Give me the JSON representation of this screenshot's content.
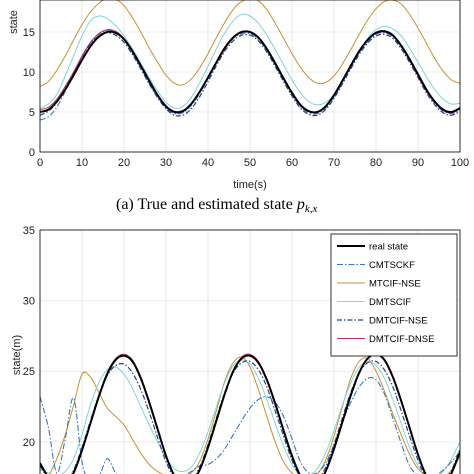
{
  "colors": {
    "real state": "#000000",
    "CMTSCKF": "#3a78c2",
    "MTCIF-NSE": "#c8912e",
    "DMTSCIF": "#7fd6d6",
    "DMTCIF-NSE": "#27408b",
    "DMTCIF-DNSE": "#b0306a"
  },
  "caption_a": "(a)  True and estimated state p_k,x",
  "chart_data": [
    {
      "type": "line",
      "xlabel": "time(s)",
      "ylabel": "state",
      "xlim": [
        0,
        100
      ],
      "ylim": [
        0,
        19
      ],
      "xticks": [
        "0",
        "10",
        "20",
        "30",
        "40",
        "50",
        "60",
        "70",
        "80",
        "90",
        "100"
      ],
      "yticks": [
        "0",
        "5",
        "10",
        "15"
      ],
      "grid": true,
      "x": [
        0,
        2,
        4,
        6,
        8,
        10,
        12,
        14,
        16,
        18,
        20,
        22,
        24,
        26,
        28,
        30,
        32,
        34,
        36,
        38,
        40,
        42,
        44,
        46,
        48,
        50,
        52,
        54,
        56,
        58,
        60,
        62,
        64,
        66,
        68,
        70,
        72,
        74,
        76,
        78,
        80,
        82,
        84,
        86,
        88,
        90,
        92,
        94,
        96,
        98,
        100
      ],
      "series": [
        {
          "name": "real state",
          "values": [
            5.0,
            5.3,
            6.3,
            7.8,
            9.6,
            11.5,
            13.2,
            14.4,
            15.0,
            14.9,
            14.1,
            12.6,
            10.8,
            8.9,
            7.1,
            5.7,
            5.0,
            5.1,
            6.0,
            7.5,
            9.3,
            11.2,
            13.0,
            14.3,
            15.0,
            15.0,
            14.3,
            12.9,
            11.1,
            9.2,
            7.4,
            5.9,
            5.1,
            5.0,
            5.7,
            7.1,
            8.9,
            10.8,
            12.6,
            14.0,
            14.9,
            15.1,
            14.6,
            13.3,
            11.6,
            9.7,
            7.8,
            6.3,
            5.3,
            5.0,
            5.5
          ]
        },
        {
          "name": "CMTSCKF",
          "values": [
            4.0,
            4.4,
            5.6,
            7.6,
            9.8,
            11.9,
            13.6,
            14.7,
            15.2,
            15.0,
            14.0,
            12.4,
            10.5,
            8.6,
            6.9,
            5.5,
            4.8,
            4.9,
            5.8,
            7.3,
            9.2,
            11.1,
            12.9,
            14.2,
            14.8,
            14.8,
            14.1,
            12.7,
            10.9,
            9.0,
            7.2,
            5.7,
            4.9,
            4.8,
            5.5,
            6.9,
            8.7,
            10.6,
            12.4,
            13.8,
            14.7,
            14.9,
            14.4,
            13.1,
            11.4,
            9.5,
            7.6,
            6.1,
            5.1,
            4.8,
            5.3
          ]
        },
        {
          "name": "MTCIF-NSE",
          "values": [
            8.2,
            8.8,
            10.2,
            12.0,
            14.0,
            15.9,
            17.5,
            18.6,
            19.2,
            19.1,
            18.3,
            16.8,
            15.0,
            13.0,
            11.2,
            9.6,
            8.6,
            8.4,
            9.1,
            10.5,
            12.3,
            14.3,
            16.2,
            17.8,
            18.8,
            19.2,
            18.9,
            17.8,
            16.1,
            14.2,
            12.3,
            10.6,
            9.3,
            8.6,
            8.7,
            9.5,
            11.0,
            12.8,
            14.7,
            16.5,
            17.9,
            18.8,
            19.0,
            18.5,
            17.2,
            15.5,
            13.6,
            11.7,
            10.1,
            9.0,
            8.6
          ]
        },
        {
          "name": "DMTSCIF",
          "values": [
            5.5,
            6.0,
            7.2,
            9.5,
            12.0,
            14.5,
            16.4,
            17.0,
            16.7,
            15.8,
            14.5,
            12.9,
            11.1,
            9.3,
            7.6,
            6.2,
            5.5,
            5.7,
            6.8,
            8.6,
            10.7,
            12.9,
            14.9,
            16.4,
            17.2,
            17.0,
            16.1,
            14.6,
            12.8,
            10.9,
            9.0,
            7.4,
            6.3,
            5.9,
            6.2,
            7.2,
            8.8,
            10.7,
            12.6,
            14.2,
            15.3,
            15.7,
            15.4,
            14.5,
            13.0,
            11.2,
            9.4,
            7.8,
            6.6,
            6.0,
            6.1
          ]
        },
        {
          "name": "DMTCIF-NSE",
          "values": [
            4.6,
            5.1,
            6.2,
            7.9,
            9.9,
            11.9,
            13.5,
            14.5,
            14.9,
            14.6,
            13.7,
            12.2,
            10.4,
            8.5,
            6.8,
            5.4,
            4.6,
            4.6,
            5.4,
            6.9,
            8.8,
            10.8,
            12.6,
            13.9,
            14.6,
            14.6,
            13.9,
            12.5,
            10.7,
            8.8,
            7.0,
            5.5,
            4.7,
            4.6,
            5.3,
            6.7,
            8.5,
            10.4,
            12.2,
            13.6,
            14.5,
            14.7,
            14.2,
            12.9,
            11.2,
            9.3,
            7.4,
            5.9,
            4.9,
            4.6,
            5.1
          ]
        },
        {
          "name": "DMTCIF-DNSE",
          "values": [
            5.3,
            5.6,
            6.6,
            8.2,
            10.0,
            12.0,
            13.7,
            14.8,
            15.3,
            15.1,
            14.2,
            12.7,
            10.9,
            9.0,
            7.2,
            5.8,
            5.1,
            5.2,
            6.1,
            7.6,
            9.4,
            11.3,
            13.1,
            14.4,
            15.0,
            15.0,
            14.3,
            12.9,
            11.1,
            9.2,
            7.4,
            5.9,
            5.1,
            5.0,
            5.7,
            7.1,
            8.9,
            10.8,
            12.6,
            14.0,
            14.8,
            15.0,
            14.5,
            13.2,
            11.5,
            9.6,
            7.7,
            6.2,
            5.2,
            4.9,
            5.4
          ]
        }
      ]
    },
    {
      "type": "line",
      "xlabel": "",
      "ylabel": "state(m)",
      "xlim": [
        0,
        100
      ],
      "ylim": [
        17.3,
        35
      ],
      "yticks": [
        "20",
        "25",
        "30",
        "35"
      ],
      "grid": true,
      "legend_position": "top-right",
      "legend": [
        "real state",
        "CMTSCKF",
        "MTCIF-NSE",
        "DMTSCIF",
        "DMTCIF-NSE",
        "DMTCIF-DNSE"
      ],
      "x": [
        0,
        2,
        4,
        6,
        8,
        10,
        12,
        14,
        16,
        18,
        20,
        22,
        24,
        26,
        28,
        30,
        32,
        34,
        36,
        38,
        40,
        42,
        44,
        46,
        48,
        50,
        52,
        54,
        56,
        58,
        60,
        62,
        64,
        66,
        68,
        70,
        72,
        74,
        76,
        78,
        80,
        82,
        84,
        86,
        88,
        90,
        92,
        94,
        96,
        98,
        100
      ],
      "series": [
        {
          "name": "real state",
          "values": [
            18.5,
            17.5,
            16.9,
            17.0,
            17.8,
            19.4,
            21.3,
            23.2,
            24.8,
            25.8,
            26.1,
            25.7,
            24.5,
            22.8,
            20.9,
            19.0,
            17.6,
            16.9,
            17.1,
            18.0,
            19.6,
            21.5,
            23.4,
            25.0,
            25.9,
            26.1,
            25.6,
            24.4,
            22.7,
            20.8,
            19.0,
            17.6,
            16.9,
            17.0,
            17.9,
            19.5,
            21.4,
            23.3,
            24.9,
            25.9,
            26.2,
            25.8,
            24.6,
            22.9,
            21.0,
            19.1,
            17.6,
            16.9,
            17.0,
            17.8,
            19.3
          ]
        },
        {
          "name": "CMTSCKF",
          "values": [
            23.2,
            21.0,
            17.8,
            20.2,
            23.1,
            18.6,
            17.0,
            17.5,
            18.8,
            17.8,
            17.2,
            17.5,
            17.0,
            16.8,
            17.2,
            17.6,
            17.7,
            17.6,
            17.9,
            18.3,
            18.4,
            18.8,
            19.5,
            20.5,
            21.5,
            22.4,
            23.0,
            23.2,
            22.8,
            21.8,
            20.2,
            18.6,
            17.8,
            17.8,
            18.5,
            19.8,
            21.4,
            22.8,
            23.9,
            24.5,
            24.4,
            23.4,
            21.7,
            19.9,
            18.3,
            17.6,
            17.4,
            17.6,
            18.0,
            18.6,
            19.3
          ]
        },
        {
          "name": "MTCIF-NSE",
          "values": [
            17.2,
            17.6,
            18.8,
            20.5,
            22.6,
            24.8,
            24.6,
            23.5,
            22.4,
            21.8,
            21.2,
            20.2,
            19.2,
            18.4,
            17.9,
            17.6,
            17.5,
            17.6,
            17.8,
            18.6,
            20.2,
            22.2,
            24.3,
            25.6,
            26.0,
            25.3,
            23.7,
            21.8,
            20.0,
            18.6,
            17.8,
            17.5,
            17.4,
            17.7,
            18.7,
            20.4,
            22.5,
            24.5,
            25.7,
            25.9,
            25.0,
            23.6,
            22.0,
            20.5,
            19.1,
            18.1,
            17.6,
            17.4,
            17.5,
            18.0,
            19.0
          ]
        },
        {
          "name": "DMTSCIF",
          "values": [
            18.0,
            17.8,
            17.6,
            17.9,
            18.8,
            20.5,
            22.6,
            24.2,
            25.1,
            25.3,
            24.8,
            23.8,
            22.5,
            21.2,
            20.0,
            18.9,
            18.1,
            17.9,
            18.2,
            19.2,
            20.7,
            22.5,
            24.2,
            25.4,
            25.8,
            25.5,
            24.5,
            23.0,
            21.3,
            19.7,
            18.4,
            17.7,
            17.6,
            18.1,
            19.2,
            20.8,
            22.6,
            24.2,
            25.3,
            25.7,
            25.4,
            24.5,
            23.0,
            21.3,
            19.6,
            18.3,
            17.6,
            17.5,
            17.9,
            18.8,
            20.0
          ]
        },
        {
          "name": "DMTCIF-NSE",
          "values": [
            18.3,
            17.4,
            16.9,
            17.1,
            18.0,
            19.6,
            21.5,
            23.3,
            24.7,
            25.4,
            25.5,
            24.9,
            23.7,
            22.1,
            20.3,
            18.6,
            17.4,
            16.9,
            17.2,
            18.2,
            19.8,
            21.7,
            23.5,
            24.9,
            25.6,
            25.7,
            25.1,
            23.9,
            22.2,
            20.4,
            18.7,
            17.5,
            17.0,
            17.2,
            18.2,
            19.8,
            21.7,
            23.5,
            24.9,
            25.6,
            25.7,
            25.1,
            23.9,
            22.2,
            20.4,
            18.7,
            17.4,
            16.9,
            17.1,
            18.0,
            19.5
          ]
        },
        {
          "name": "DMTCIF-DNSE",
          "values": [
            18.4,
            17.5,
            16.9,
            17.0,
            17.9,
            19.5,
            21.4,
            23.3,
            24.9,
            25.9,
            26.2,
            25.8,
            24.6,
            22.9,
            21.0,
            19.1,
            17.6,
            16.9,
            17.1,
            18.0,
            19.6,
            21.5,
            23.4,
            25.0,
            26.0,
            26.2,
            25.7,
            24.5,
            22.8,
            20.9,
            19.1,
            17.6,
            16.9,
            17.0,
            17.9,
            19.5,
            21.4,
            23.3,
            24.9,
            25.9,
            26.2,
            25.8,
            24.6,
            22.9,
            21.0,
            19.1,
            17.6,
            16.9,
            17.0,
            17.8,
            19.3
          ]
        }
      ]
    }
  ]
}
